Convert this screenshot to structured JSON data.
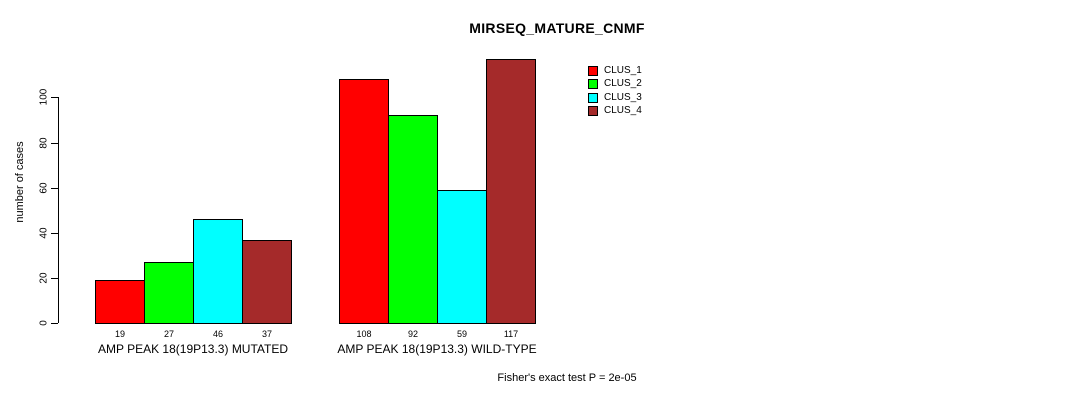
{
  "chart_data": {
    "type": "bar",
    "title": "MIRSEQ_MATURE_CNMF",
    "ylabel": "number of cases",
    "ylim": [
      0,
      118
    ],
    "yticks": [
      0,
      20,
      40,
      60,
      80,
      100
    ],
    "grid": false,
    "legend_position": "top-right-inside",
    "categories": [
      "AMP PEAK 18(19P13.3) MUTATED",
      "AMP PEAK 18(19P13.3) WILD-TYPE"
    ],
    "series": [
      {
        "name": "CLUS_1",
        "color": "#FF0000",
        "values": [
          19,
          108
        ]
      },
      {
        "name": "CLUS_2",
        "color": "#00FF00",
        "values": [
          27,
          92
        ]
      },
      {
        "name": "CLUS_3",
        "color": "#00FFFF",
        "values": [
          46,
          59
        ]
      },
      {
        "name": "CLUS_4",
        "color": "#A52A2A",
        "values": [
          37,
          117
        ]
      }
    ],
    "bar_value_labels": [
      [
        "19",
        "27",
        "46",
        "37"
      ],
      [
        "108",
        "92",
        "59",
        "117"
      ]
    ],
    "annotation": "Fisher's exact test P = 2e-05"
  }
}
